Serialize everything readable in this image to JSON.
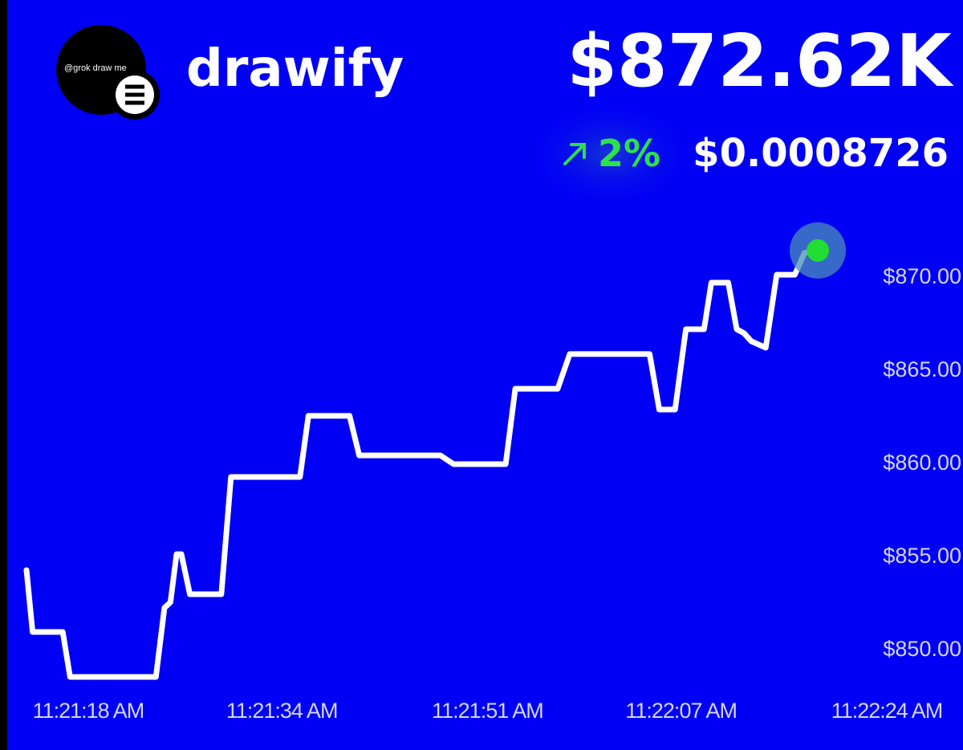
{
  "header": {
    "avatar_text": "@grok draw me",
    "name": "drawify",
    "market_cap": "$872.62K",
    "change": "2%",
    "price": "$0.0008726"
  },
  "chart_data": {
    "type": "line",
    "color": "#ffffff",
    "end_marker_color": "#22dd33",
    "x": [
      40872.9,
      40873.4,
      40875.9,
      40876.5,
      40883.6,
      40884.3,
      40884.8,
      40885.3,
      40885.7,
      40886.4,
      40889.0,
      40889.8,
      40895.5,
      40896.2,
      40899.6,
      40900.4,
      40907.1,
      40908.2,
      40912.5,
      40913.3,
      40916.8,
      40917.8,
      40924.4,
      40925.2,
      40926.5,
      40927.4,
      40928.9,
      40929.5,
      40930.9,
      40931.6,
      40932.2,
      40932.8,
      40934.0,
      40934.9,
      40936.4,
      40937.2,
      40938.3
    ],
    "values": [
      854.18,
      850.86,
      850.86,
      848.45,
      848.45,
      852.16,
      852.46,
      855.04,
      855.04,
      852.89,
      852.89,
      859.18,
      859.18,
      862.46,
      862.46,
      860.34,
      860.34,
      859.87,
      859.87,
      863.92,
      863.92,
      865.78,
      865.78,
      862.8,
      862.8,
      867.11,
      867.11,
      869.61,
      869.61,
      867.11,
      866.9,
      866.47,
      866.12,
      870.04,
      870.04,
      871.21,
      871.34
    ],
    "xlim": [
      40872.7,
      40944
    ],
    "xticks": [
      {
        "value": 40878,
        "label": "11:21:18 AM"
      },
      {
        "value": 40894,
        "label": "11:21:34 AM"
      },
      {
        "value": 40911,
        "label": "11:21:51 AM"
      },
      {
        "value": 40927,
        "label": "11:22:07 AM"
      },
      {
        "value": 40944,
        "label": "11:22:24 AM"
      }
    ],
    "ylim": [
      848,
      872.5
    ],
    "yticks": [
      {
        "value": 850,
        "label": "$850.00"
      },
      {
        "value": 855,
        "label": "$855.00"
      },
      {
        "value": 860,
        "label": "$860.00"
      },
      {
        "value": 865,
        "label": "$865.00"
      },
      {
        "value": 870,
        "label": "$870.00"
      }
    ]
  }
}
